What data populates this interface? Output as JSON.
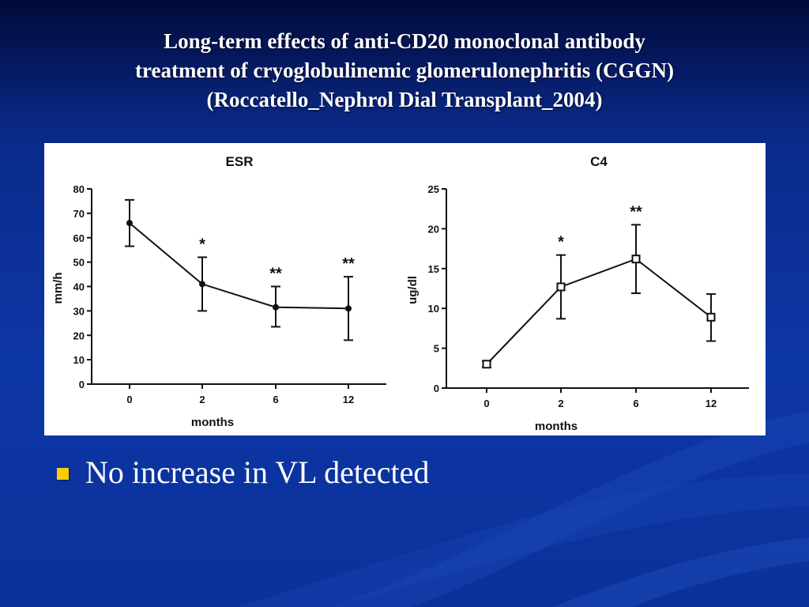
{
  "slide": {
    "title_lines": [
      "Long-term effects of anti-CD20 monoclonal antibody",
      "treatment of cryoglobulinemic glomerulonephritis (CGGN)",
      "(Roccatello_Nephrol Dial Transplant_2004)"
    ],
    "bullets": [
      "No increase in VL detected"
    ],
    "colors": {
      "background": "#0d36a6",
      "bullet": "#ffcc00",
      "text": "#ffffff"
    }
  },
  "chart_data": [
    {
      "type": "line",
      "title": "ESR",
      "xlabel": "months",
      "ylabel": "mm/h",
      "categories": [
        "0",
        "2",
        "6",
        "12"
      ],
      "ylim": [
        0,
        80
      ],
      "yticks": [
        0,
        10,
        20,
        30,
        40,
        50,
        60,
        70,
        80
      ],
      "marker": "filled-circle",
      "series": [
        {
          "values": [
            66,
            41,
            31.5,
            31
          ],
          "error_low": [
            56.5,
            30,
            23.5,
            18
          ],
          "error_high": [
            75.5,
            52,
            40,
            44
          ]
        }
      ],
      "annotations": [
        "",
        "*",
        "**",
        "**"
      ]
    },
    {
      "type": "line",
      "title": "C4",
      "xlabel": "months",
      "ylabel": "ug/dl",
      "categories": [
        "0",
        "2",
        "6",
        "12"
      ],
      "ylim": [
        0,
        25
      ],
      "yticks": [
        0,
        5,
        10,
        15,
        20,
        25
      ],
      "marker": "open-square",
      "series": [
        {
          "values": [
            3,
            12.7,
            16.2,
            8.9
          ],
          "error_low": [
            2.6,
            8.7,
            11.9,
            5.9
          ],
          "error_high": [
            3.4,
            16.7,
            20.5,
            11.8
          ]
        }
      ],
      "annotations": [
        "",
        "*",
        "**",
        ""
      ]
    }
  ]
}
